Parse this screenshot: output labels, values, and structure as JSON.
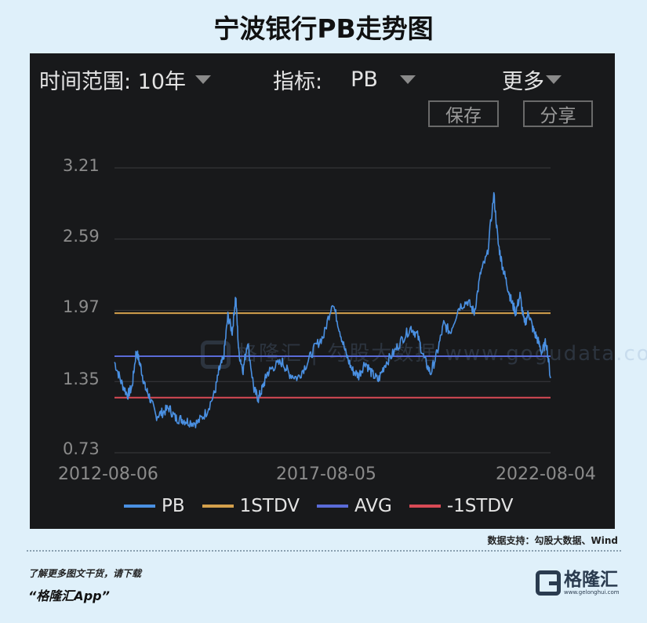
{
  "title": "宁波银行PB走势图",
  "toolbar": {
    "range_label": "时间范围: 10年",
    "indicator_label": "指标:",
    "indicator_value": "PB",
    "more_label": "更多",
    "save_label": "保存",
    "share_label": "分享"
  },
  "watermark": "格隆汇 | 勾股大数据 www.gogudata.com",
  "chart_data": {
    "type": "line",
    "x_ticks": [
      "2012-08-06",
      "2017-08-05",
      "2022-08-04"
    ],
    "y_ticks": [
      "3.21",
      "2.59",
      "1.97",
      "1.35",
      "0.73"
    ],
    "ylim": [
      0.73,
      3.21
    ],
    "x_range": [
      "2012-08-06",
      "2022-08-04"
    ],
    "grid": "horizontal",
    "legend_position": "bottom",
    "series": [
      {
        "name": "PB",
        "color": "#4a90e2",
        "x": [
          2012.6,
          2012.75,
          2012.9,
          2013.0,
          2013.1,
          2013.2,
          2013.3,
          2013.4,
          2013.55,
          2013.7,
          2013.85,
          2014.0,
          2014.15,
          2014.3,
          2014.5,
          2014.7,
          2014.9,
          2015.0,
          2015.1,
          2015.2,
          2015.3,
          2015.38,
          2015.45,
          2015.55,
          2015.65,
          2015.8,
          2015.9,
          2016.0,
          2016.1,
          2016.25,
          2016.45,
          2016.6,
          2016.8,
          2017.0,
          2017.2,
          2017.4,
          2017.6,
          2017.75,
          2017.9,
          2018.05,
          2018.2,
          2018.35,
          2018.5,
          2018.65,
          2018.8,
          2019.0,
          2019.2,
          2019.4,
          2019.55,
          2019.7,
          2019.85,
          2020.0,
          2020.15,
          2020.3,
          2020.5,
          2020.7,
          2020.85,
          2021.0,
          2021.15,
          2021.3,
          2021.4,
          2021.5,
          2021.6,
          2021.7,
          2021.8,
          2021.9,
          2022.0,
          2022.1,
          2022.2,
          2022.3,
          2022.4,
          2022.5,
          2022.6
        ],
        "y": [
          1.52,
          1.35,
          1.23,
          1.3,
          1.62,
          1.48,
          1.3,
          1.22,
          1.05,
          1.08,
          1.12,
          1.03,
          1.02,
          1.0,
          0.99,
          1.08,
          1.25,
          1.45,
          1.55,
          1.92,
          1.78,
          2.1,
          1.6,
          1.45,
          1.7,
          1.28,
          1.2,
          1.3,
          1.42,
          1.48,
          1.52,
          1.42,
          1.38,
          1.5,
          1.65,
          1.75,
          2.05,
          1.82,
          1.6,
          1.45,
          1.4,
          1.52,
          1.42,
          1.36,
          1.5,
          1.6,
          1.72,
          1.82,
          1.75,
          1.55,
          1.42,
          1.6,
          1.85,
          1.78,
          2.0,
          2.05,
          1.95,
          2.3,
          2.45,
          2.98,
          2.55,
          2.35,
          2.2,
          2.05,
          1.95,
          2.1,
          1.85,
          1.95,
          1.8,
          1.72,
          1.6,
          1.7,
          1.38
        ]
      },
      {
        "name": "1STDV",
        "color": "#d4a04c",
        "value": 1.945
      },
      {
        "name": "AVG",
        "color": "#5a6bd8",
        "value": 1.57
      },
      {
        "name": "-1STDV",
        "color": "#d84a55",
        "value": 1.21
      }
    ]
  },
  "footer": {
    "source": "数据支持：勾股大数据、Wind",
    "promo_line1": "了解更多图文干货，请下载",
    "promo_line2": "“格隆汇App”",
    "brand_name": "格隆汇",
    "brand_url": "www.gelonghui.com"
  }
}
